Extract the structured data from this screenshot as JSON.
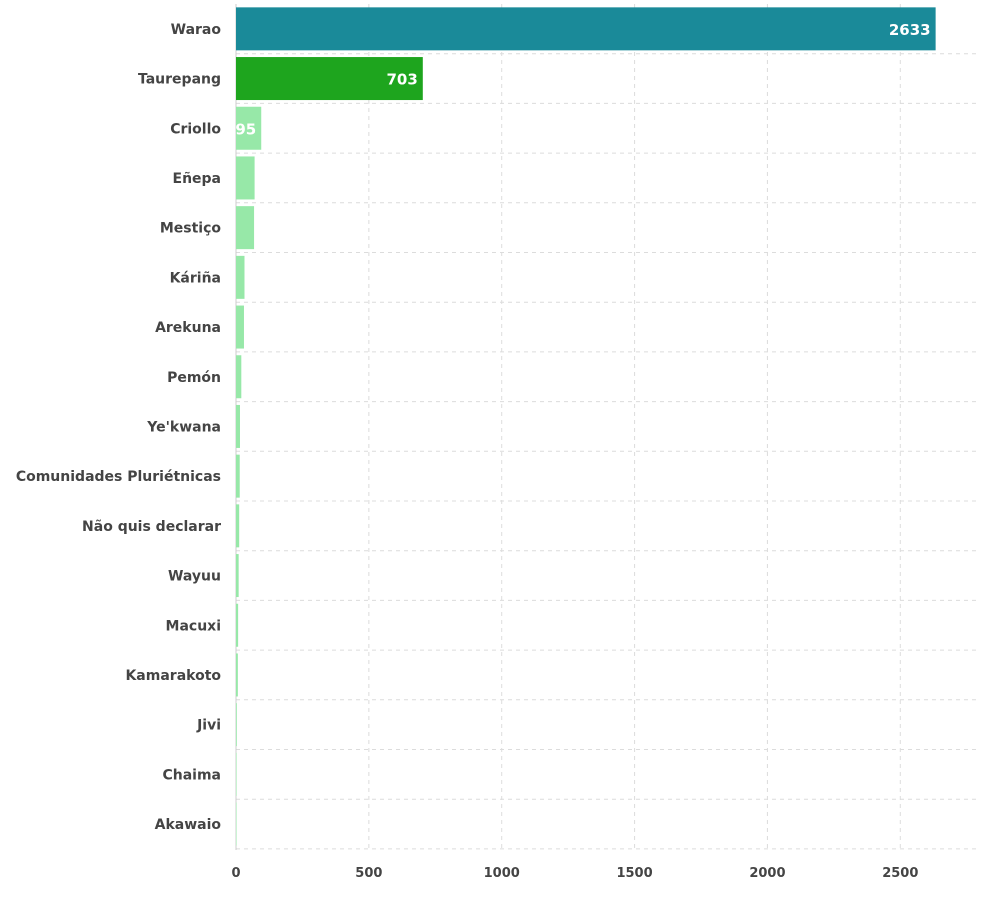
{
  "chart_data": {
    "type": "bar",
    "orientation": "horizontal",
    "title": "",
    "xlabel": "",
    "ylabel": "",
    "categories": [
      "Warao",
      "Taurepang",
      "Criollo",
      "Eñepa",
      "Mestiço",
      "Káriña",
      "Arekuna",
      "Pemón",
      "Ye'kwana",
      "Comunidades Pluriétnicas",
      "Não quis declarar",
      "Wayuu",
      "Macuxi",
      "Kamarakoto",
      "Jivi",
      "Chaima",
      "Akawaio"
    ],
    "values": [
      2633,
      703,
      95,
      70,
      68,
      32,
      30,
      20,
      15,
      14,
      12,
      10,
      8,
      7,
      3,
      2,
      1
    ],
    "data_labels": [
      "2633",
      "703",
      "95",
      "",
      "",
      "",
      "",
      "",
      "",
      "",
      "",
      "",
      "",
      "",
      "",
      "",
      ""
    ],
    "bar_colors": [
      "#1a8a99",
      "#1ea51e",
      "#97e8a8",
      "#97e8a8",
      "#97e8a8",
      "#97e8a8",
      "#97e8a8",
      "#97e8a8",
      "#97e8a8",
      "#97e8a8",
      "#97e8a8",
      "#97e8a8",
      "#97e8a8",
      "#97e8a8",
      "#97e8a8",
      "#97e8a8",
      "#97e8a8"
    ],
    "xlim": [
      0,
      2800
    ],
    "xticks": [
      0,
      500,
      1000,
      1500,
      2000,
      2500
    ],
    "grid": true
  }
}
